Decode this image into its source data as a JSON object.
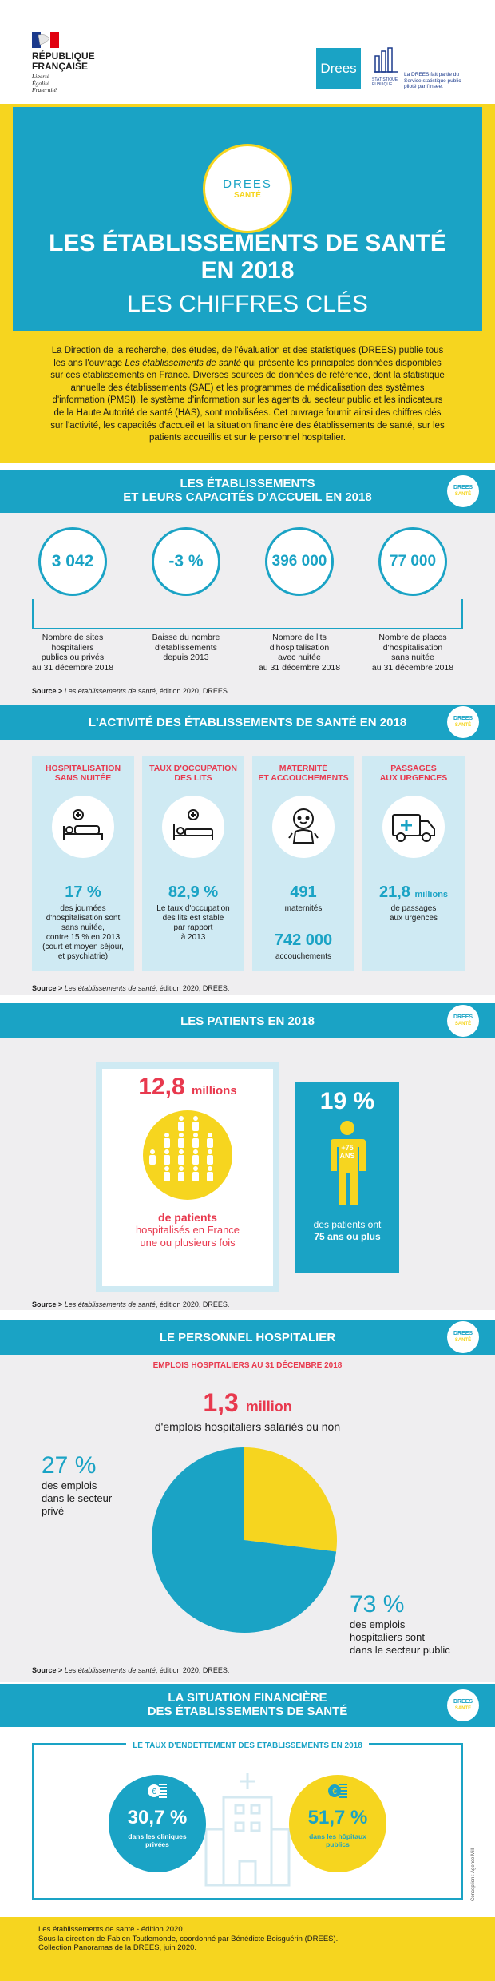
{
  "header": {
    "republic_line1": "RÉPUBLIQUE",
    "republic_line2": "FRANÇAISE",
    "motto1": "Liberté",
    "motto2": "Égalité",
    "motto3": "Fraternité",
    "drees_logo": "Drees",
    "stat_label": "STATISTIQUE PUBLIQUE",
    "stat_note": "La DREES fait partie du Service statistique public piloté par l'Insee."
  },
  "hero": {
    "badge_top": "DREES",
    "badge_bottom": "SANTÉ",
    "title_line1": "LES ÉTABLISSEMENTS DE SANTÉ",
    "title_line2": "EN 2018",
    "subtitle": "LES CHIFFRES CLÉS"
  },
  "intro": {
    "text_a": "La Direction de la recherche, des études, de l'évaluation et des statistiques (DREES) publie tous les ans l'ouvrage ",
    "text_italic": "Les établissements de santé",
    "text_b": " qui présente les principales données disponibles sur ces établissements en France. Diverses sources de données de référence, dont la statistique annuelle des établissements (SAE) et les programmes de médicalisation des systèmes d'information (PMSI), le système d'information sur les agents du secteur public et les indicateurs de la Haute Autorité de santé (HAS), sont mobilisées. Cet ouvrage fournit ainsi des chiffres clés sur l'activité, les capacités d'accueil et la situation financière des établissements de santé, sur les patients accueillis et sur le personnel hospitalier."
  },
  "badge": {
    "top": "DREES",
    "bottom": "SANTÉ"
  },
  "section1": {
    "title_line1": "LES ÉTABLISSEMENTS",
    "title_line2": "ET LEURS CAPACITÉS D'ACCUEIL EN 2018",
    "stats": [
      {
        "value": "3 042",
        "l1": "Nombre de sites",
        "l2": "hospitaliers",
        "l3": "publics ou privés",
        "l4": "au 31 décembre 2018"
      },
      {
        "value": "-3 %",
        "l1": "Baisse du nombre",
        "l2": "d'établissements",
        "l3": "depuis 2013",
        "l4": ""
      },
      {
        "value": "396 000",
        "l1": "Nombre de lits",
        "l2": "d'hospitalisation",
        "l3": "avec nuitée",
        "l4": "au 31 décembre 2018"
      },
      {
        "value": "77 000",
        "l1": "Nombre de places",
        "l2": "d'hospitalisation",
        "l3": "sans nuitée",
        "l4": "au 31 décembre 2018"
      }
    ]
  },
  "source": {
    "label": "Source >",
    "text": " Les établissements de santé",
    "edition": ", édition 2020, DREES."
  },
  "section2": {
    "title": "L'ACTIVITÉ DES ÉTABLISSEMENTS DE SANTÉ EN 2018",
    "c1_h1": "HOSPITALISATION",
    "c1_h2": "SANS NUITÉE",
    "c1_value": "17 %",
    "c1_t1": "des journées",
    "c1_t2": "d'hospitalisation sont",
    "c1_t3": "sans nuitée,",
    "c1_t4": "contre 15 % en 2013",
    "c1_t5": "(court et moyen séjour,",
    "c1_t6": "et psychiatrie)",
    "c2_h1": "TAUX D'OCCUPATION",
    "c2_h2": "DES LITS",
    "c2_value": "82,9 %",
    "c2_t1": "Le taux d'occupation",
    "c2_t2": "des lits est stable",
    "c2_t3": "par rapport",
    "c2_t4": "à 2013",
    "c3_h1": "MATERNITÉ",
    "c3_h2": "ET ACCOUCHEMENTS",
    "c3_v1": "491",
    "c3_l1": "maternités",
    "c3_v2": "742 000",
    "c3_l2": "accouchements",
    "c4_h1": "PASSAGES",
    "c4_h2": "AUX URGENCES",
    "c4_value": "21,8",
    "c4_unit": "millions",
    "c4_t1": "de passages",
    "c4_t2": "aux urgences"
  },
  "section3": {
    "title": "LES PATIENTS EN 2018",
    "big_value": "12,8",
    "big_unit": "millions",
    "label_bold": "de patients",
    "label_l2": "hospitalisés en France",
    "label_l3": "une ou plusieurs fois",
    "pct": "19 %",
    "age_badge_l1": "+75",
    "age_badge_l2": "ANS",
    "pct_l1": "des patients ont",
    "pct_l2": "75 ans ou plus"
  },
  "section4": {
    "title": "LE PERSONNEL HOSPITALIER",
    "subtitle": "EMPLOIS HOSPITALIERS AU 31 DÉCEMBRE 2018",
    "big_value": "1,3",
    "big_unit": "million",
    "big_label": "d'emplois hospitaliers salariés ou non",
    "private_pct": "27 %",
    "private_l1": "des emplois",
    "private_l2": "dans le secteur",
    "private_l3": "privé",
    "public_pct": "73 %",
    "public_l1": "des emplois",
    "public_l2": "hospitaliers sont",
    "public_l3": "dans le secteur public"
  },
  "chart_data": {
    "type": "pie",
    "series": [
      {
        "label": "privé",
        "value": 27,
        "color": "#f6d51f"
      },
      {
        "label": "public",
        "value": 73,
        "color": "#1aa3c5"
      }
    ]
  },
  "section5": {
    "title_line1": "LA SITUATION FINANCIÈRE",
    "title_line2": "DES ÉTABLISSEMENTS DE SANTÉ",
    "subtitle": "LE TAUX D'ENDETTEMENT DES ÉTABLISSEMENTS EN 2018",
    "left_pct": "30,7 %",
    "left_l1": "dans les cliniques",
    "left_l2": "privées",
    "right_pct": "51,7 %",
    "right_l1": "dans les hôpitaux",
    "right_l2": "publics",
    "credit": "Conception : Agence Mill"
  },
  "footer": {
    "l1": "Les établissements de santé - édition 2020.",
    "l2": "Sous la direction de Fabien Toutlemonde, coordonné par Bénédicte Boisguérin (DREES).",
    "l3": "Collection Panoramas de la DREES, juin 2020."
  },
  "colors": {
    "blue": "#1aa3c5",
    "yellow": "#f6d51f",
    "red": "#e8394e",
    "grey": "#efeef0",
    "lightblue": "#cfeaf3"
  }
}
